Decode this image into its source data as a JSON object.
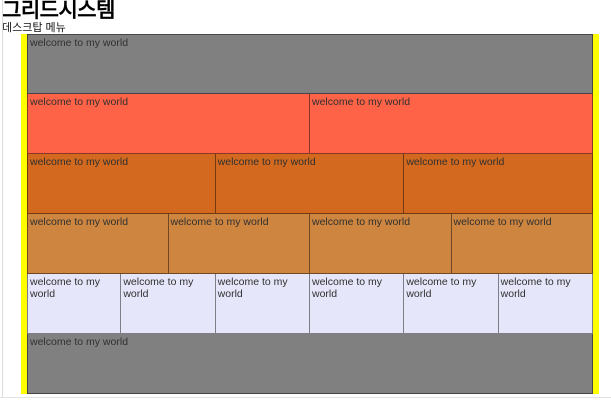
{
  "page": {
    "title": "그리드시스템",
    "subtitle": "데스크탑 메뉴"
  },
  "grid": {
    "container_background": "#FFFF00",
    "cell_border_color": "rgba(0,0,0,0.45)",
    "cell_text": "welcome to my world",
    "rows": [
      {
        "color_name": "gray",
        "color": "#808080",
        "columns": 1
      },
      {
        "color_name": "tomato",
        "color": "#FF6347",
        "columns": 2
      },
      {
        "color_name": "chocolate",
        "color": "#D2691E",
        "columns": 3
      },
      {
        "color_name": "peru",
        "color": "#CD853F",
        "columns": 4
      },
      {
        "color_name": "lavender",
        "color": "#E6E6FA",
        "columns": 6
      },
      {
        "color_name": "gray",
        "color": "#808080",
        "columns": 1
      }
    ]
  }
}
